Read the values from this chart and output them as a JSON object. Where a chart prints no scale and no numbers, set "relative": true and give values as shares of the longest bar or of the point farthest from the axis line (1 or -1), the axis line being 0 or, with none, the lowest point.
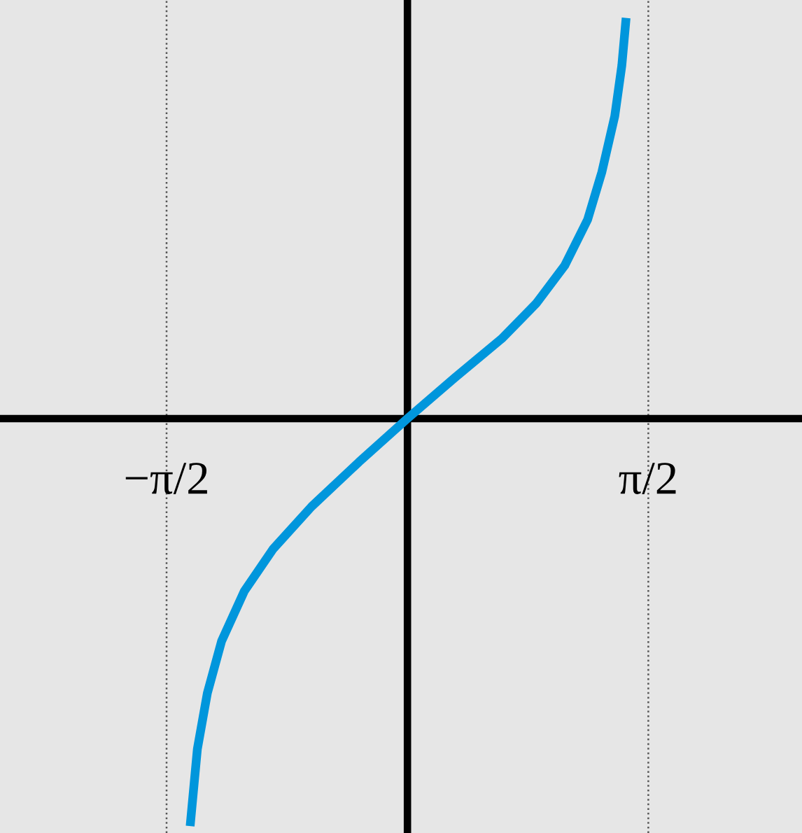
{
  "chart_data": {
    "type": "line",
    "relative": true,
    "tick_labels": "x",
    "grid": false,
    "legend": false,
    "marker": "none",
    "line_style": "solid",
    "xlim": [
      -2.657,
      2.573
    ],
    "xticks": [
      {
        "value": -1.5708,
        "label": "−π/2"
      },
      {
        "value": 1.5708,
        "label": "π/2"
      }
    ],
    "ref_lines": [
      {
        "axis": "x",
        "value": -1.5708,
        "color": "#555555",
        "line_style": "dotted"
      },
      {
        "axis": "x",
        "value": 1.5708,
        "color": "#555555",
        "line_style": "dotted"
      }
    ],
    "series": [
      {
        "color": "#0096dc",
        "x": [
          -1.417,
          -1.37,
          -1.305,
          -1.212,
          -1.063,
          -0.876,
          -0.625,
          -0.317,
          0,
          0.308,
          0.615,
          0.839,
          1.025,
          1.175,
          1.268,
          1.352,
          1.398,
          1.426
        ],
        "values": [
          -1.0,
          -0.811,
          -0.674,
          -0.546,
          -0.423,
          -0.32,
          -0.216,
          -0.107,
          0,
          0.1,
          0.196,
          0.282,
          0.375,
          0.488,
          0.605,
          0.742,
          0.866,
          0.983
        ]
      }
    ]
  }
}
